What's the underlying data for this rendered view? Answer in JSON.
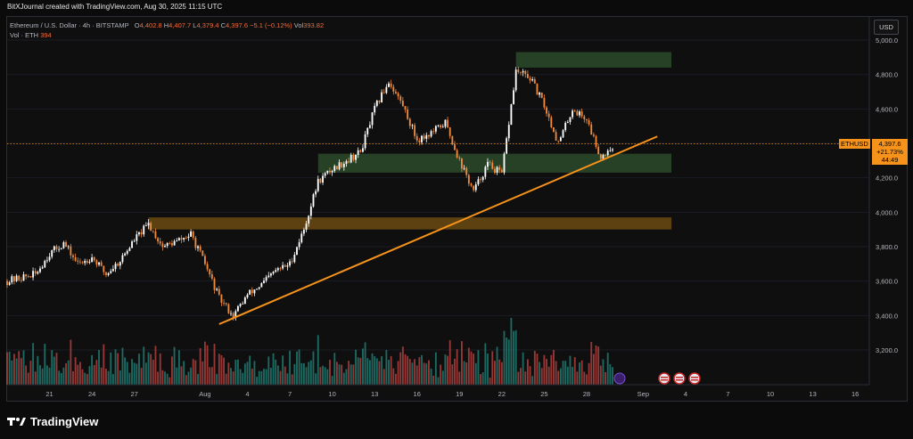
{
  "header": {
    "attribution": "BitXJournal created with TradingView.com, Aug 30, 2025 11:15 UTC"
  },
  "legend": {
    "symbol_line": "Ethereum / U.S. Dollar · 4h · BITSTAMP",
    "ohlc": [
      {
        "label": "O",
        "value": "4,402.8"
      },
      {
        "label": "H",
        "value": "4,407.7"
      },
      {
        "label": "L",
        "value": "4,379.4"
      },
      {
        "label": "C",
        "value": "4,397.6"
      }
    ],
    "change": "−5.1 (−0.12%)",
    "volume_label": "Vol",
    "volume_value": "393.82",
    "volume_indicator": "Vol · ETH",
    "volume_indicator_value": "394"
  },
  "price_scale": {
    "currency_button": "USD",
    "ticks": [
      5000,
      4800,
      4600,
      4400,
      4200,
      4000,
      3800,
      3600,
      3400,
      3200
    ],
    "tick_labels": [
      "5,000.0",
      "4,800.0",
      "4,600.0",
      "4,400.0",
      "4,200.0",
      "4,000.0",
      "3,800.0",
      "3,600.0",
      "3,400.0",
      "3,200.0"
    ]
  },
  "last_price": {
    "symbol_tag": "ETHUSD",
    "price": "4,397.6",
    "change_pct": "+21.73%",
    "countdown": "44:49",
    "value": 4397.6
  },
  "time_axis": {
    "labels": [
      "21",
      "24",
      "27",
      "Aug",
      "4",
      "7",
      "10",
      "13",
      "16",
      "19",
      "22",
      "25",
      "28",
      "Sep",
      "4",
      "7",
      "10",
      "13",
      "16"
    ]
  },
  "footer": {
    "brand": "TradingView"
  },
  "colors": {
    "up": "#ffffff",
    "down": "#ef8a3c",
    "vol_up": "#26a69a",
    "vol_down": "#ef5350",
    "trendline": "#f7931a",
    "support_zone": "#2b4a2b",
    "resistance_zone": "#6b4a10",
    "accent": "#f7931a"
  },
  "chart_data": {
    "type": "candlestick",
    "symbol": "ETHUSD",
    "interval": "4h",
    "exchange": "BITSTAMP",
    "ylim": [
      3100,
      5100
    ],
    "x_range_days": [
      "Jul 18 2025",
      "Sep 17 2025"
    ],
    "close_path": [
      {
        "date": "2025-07-18",
        "close": 3600
      },
      {
        "date": "2025-07-20",
        "close": 3640
      },
      {
        "date": "2025-07-21",
        "close": 3760
      },
      {
        "date": "2025-07-22",
        "close": 3820
      },
      {
        "date": "2025-07-23",
        "close": 3700
      },
      {
        "date": "2025-07-24",
        "close": 3740
      },
      {
        "date": "2025-07-25",
        "close": 3640
      },
      {
        "date": "2025-07-26",
        "close": 3720
      },
      {
        "date": "2025-07-27",
        "close": 3840
      },
      {
        "date": "2025-07-28",
        "close": 3930
      },
      {
        "date": "2025-07-29",
        "close": 3800
      },
      {
        "date": "2025-07-30",
        "close": 3830
      },
      {
        "date": "2025-07-31",
        "close": 3870
      },
      {
        "date": "2025-08-01",
        "close": 3700
      },
      {
        "date": "2025-08-02",
        "close": 3500
      },
      {
        "date": "2025-08-03",
        "close": 3400
      },
      {
        "date": "2025-08-04",
        "close": 3520
      },
      {
        "date": "2025-08-05",
        "close": 3580
      },
      {
        "date": "2025-08-06",
        "close": 3660
      },
      {
        "date": "2025-08-07",
        "close": 3700
      },
      {
        "date": "2025-08-08",
        "close": 3900
      },
      {
        "date": "2025-08-09",
        "close": 4180
      },
      {
        "date": "2025-08-10",
        "close": 4250
      },
      {
        "date": "2025-08-11",
        "close": 4300
      },
      {
        "date": "2025-08-12",
        "close": 4350
      },
      {
        "date": "2025-08-13",
        "close": 4600
      },
      {
        "date": "2025-08-14",
        "close": 4760
      },
      {
        "date": "2025-08-15",
        "close": 4620
      },
      {
        "date": "2025-08-16",
        "close": 4420
      },
      {
        "date": "2025-08-17",
        "close": 4460
      },
      {
        "date": "2025-08-18",
        "close": 4520
      },
      {
        "date": "2025-08-19",
        "close": 4300
      },
      {
        "date": "2025-08-20",
        "close": 4120
      },
      {
        "date": "2025-08-21",
        "close": 4280
      },
      {
        "date": "2025-08-22",
        "close": 4220
      },
      {
        "date": "2025-08-23",
        "close": 4820
      },
      {
        "date": "2025-08-24",
        "close": 4780
      },
      {
        "date": "2025-08-25",
        "close": 4620
      },
      {
        "date": "2025-08-26",
        "close": 4400
      },
      {
        "date": "2025-08-27",
        "close": 4600
      },
      {
        "date": "2025-08-28",
        "close": 4540
      },
      {
        "date": "2025-08-29",
        "close": 4320
      },
      {
        "date": "2025-08-30",
        "close": 4397.6
      }
    ],
    "zones": [
      {
        "type": "resistance",
        "from": "2025-08-23",
        "to": "2025-09-03",
        "low": 4840,
        "high": 4930
      },
      {
        "type": "support",
        "from": "2025-08-09",
        "to": "2025-09-03",
        "low": 4230,
        "high": 4340
      },
      {
        "type": "support",
        "from": "2025-07-28",
        "to": "2025-09-03",
        "low": 3900,
        "high": 3970
      }
    ],
    "trendline": {
      "from": {
        "date": "2025-08-02",
        "price": 3350
      },
      "to": {
        "date": "2025-09-02",
        "price": 4440
      }
    }
  }
}
